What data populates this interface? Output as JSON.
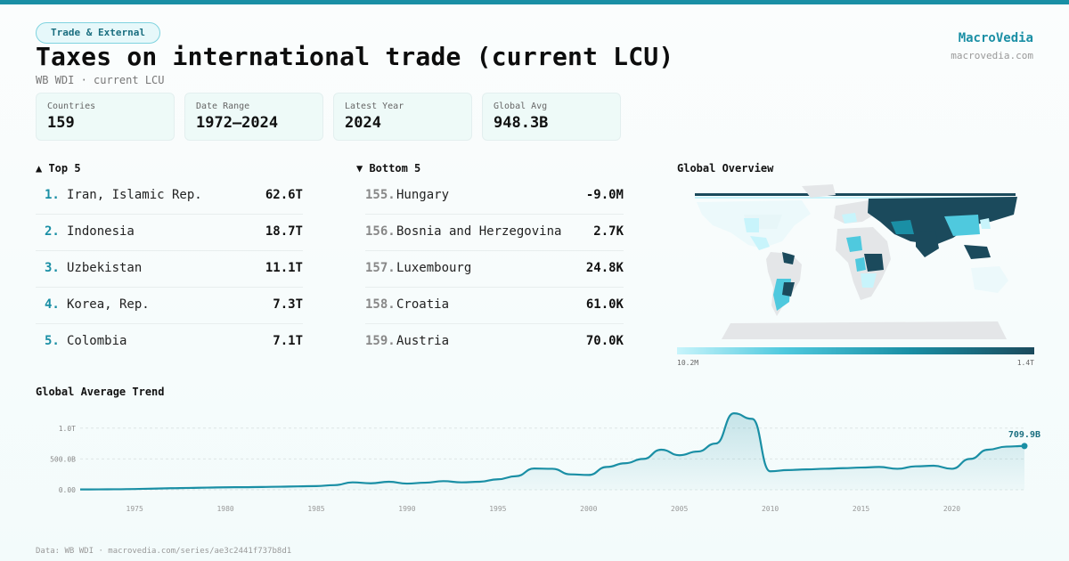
{
  "header": {
    "tag": "Trade & External",
    "title": "Taxes on international trade (current LCU)",
    "subtitle": "WB WDI · current LCU",
    "brand": "MacroVedia",
    "brand_url": "macrovedia.com"
  },
  "stats": [
    {
      "label": "Countries",
      "value": "159"
    },
    {
      "label": "Date Range",
      "value": "1972–2024"
    },
    {
      "label": "Latest Year",
      "value": "2024"
    },
    {
      "label": "Global Avg",
      "value": "948.3B"
    }
  ],
  "top5": {
    "heading": "▲ Top 5",
    "items": [
      {
        "rank": "1.",
        "name": "Iran, Islamic Rep.",
        "value": "62.6T"
      },
      {
        "rank": "2.",
        "name": "Indonesia",
        "value": "18.7T"
      },
      {
        "rank": "3.",
        "name": "Uzbekistan",
        "value": "11.1T"
      },
      {
        "rank": "4.",
        "name": "Korea, Rep.",
        "value": "7.3T"
      },
      {
        "rank": "5.",
        "name": "Colombia",
        "value": "7.1T"
      }
    ]
  },
  "bottom5": {
    "heading": "▼ Bottom 5",
    "items": [
      {
        "rank": "155.",
        "name": "Hungary",
        "value": "-9.0M"
      },
      {
        "rank": "156.",
        "name": "Bosnia and Herzegovina",
        "value": "2.7K"
      },
      {
        "rank": "157.",
        "name": "Luxembourg",
        "value": "24.8K"
      },
      {
        "rank": "158.",
        "name": "Croatia",
        "value": "61.0K"
      },
      {
        "rank": "159.",
        "name": "Austria",
        "value": "70.0K"
      }
    ]
  },
  "map": {
    "heading": "Global Overview",
    "scale_min": "10.2M",
    "scale_max": "1.4T",
    "colors": {
      "none": "#e4e6e8",
      "low": "#c8f4fb",
      "mid": "#4fc9de",
      "high": "#1a8fa5",
      "max": "#1b4a5c"
    }
  },
  "trend": {
    "heading": "Global Average Trend"
  },
  "footer": "Data: WB WDI · macrovedia.com/series/ae3c2441f737b8d1",
  "chart_data": {
    "type": "area",
    "title": "Global Average Trend",
    "x_ticks": [
      1975,
      1980,
      1985,
      1990,
      1995,
      2000,
      2005,
      2010,
      2015,
      2020
    ],
    "y_ticks": [
      "0.00",
      "500.0B",
      "1.0T"
    ],
    "ylim": [
      0,
      1300
    ],
    "y_unit": "B",
    "end_label": "709.9B",
    "color": "#1a8fa5",
    "x": [
      1972,
      1973,
      1974,
      1975,
      1976,
      1977,
      1978,
      1979,
      1980,
      1981,
      1982,
      1983,
      1984,
      1985,
      1986,
      1987,
      1988,
      1989,
      1990,
      1991,
      1992,
      1993,
      1994,
      1995,
      1996,
      1997,
      1998,
      1999,
      2000,
      2001,
      2002,
      2003,
      2004,
      2005,
      2006,
      2007,
      2008,
      2009,
      2010,
      2011,
      2012,
      2013,
      2014,
      2015,
      2016,
      2017,
      2018,
      2019,
      2020,
      2021,
      2022,
      2023,
      2024
    ],
    "y": [
      5,
      6,
      8,
      12,
      18,
      25,
      30,
      35,
      40,
      42,
      45,
      50,
      55,
      60,
      75,
      120,
      105,
      130,
      100,
      115,
      140,
      120,
      130,
      170,
      220,
      345,
      340,
      250,
      240,
      370,
      430,
      500,
      650,
      560,
      620,
      750,
      1240,
      1150,
      300,
      320,
      330,
      340,
      350,
      360,
      370,
      340,
      380,
      390,
      340,
      500,
      650,
      700,
      710
    ]
  }
}
